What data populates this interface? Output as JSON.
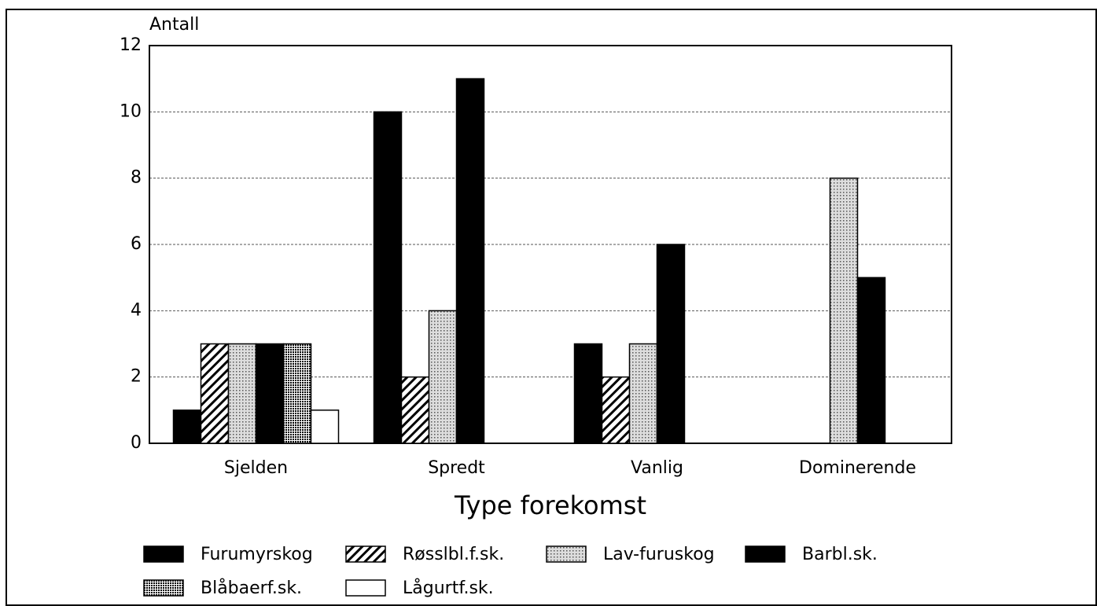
{
  "chart_data": {
    "type": "bar",
    "y_label": "Antall",
    "x_label": "Type forekomst",
    "categories": [
      "Sjelden",
      "Spredt",
      "Vanlig",
      "Dominerende"
    ],
    "series": [
      {
        "name": "Furumyrskog",
        "color": "#000000",
        "pattern": "solid",
        "values": [
          1,
          10,
          3,
          0
        ]
      },
      {
        "name": "Røsslbl.f.sk.",
        "color": "#000000",
        "pattern": "hatch",
        "values": [
          3,
          2,
          2,
          0
        ]
      },
      {
        "name": "Lav-furuskog",
        "color": "#000000",
        "pattern": "sparse-dots",
        "values": [
          3,
          4,
          3,
          8
        ]
      },
      {
        "name": "Barbl.sk.",
        "color": "#000000",
        "pattern": "solid",
        "values": [
          3,
          11,
          6,
          5
        ]
      },
      {
        "name": "Blåbaerf.sk.",
        "color": "#000000",
        "pattern": "dense-dots",
        "values": [
          3,
          0,
          0,
          0
        ]
      },
      {
        "name": "Lågurtf.sk.",
        "color": "#000000",
        "pattern": "none",
        "values": [
          1,
          0,
          0,
          0
        ]
      }
    ],
    "ylim": [
      0,
      12
    ],
    "yticks": [
      0,
      2,
      4,
      6,
      8,
      10,
      12
    ],
    "grid": true,
    "legend": "bottom"
  }
}
